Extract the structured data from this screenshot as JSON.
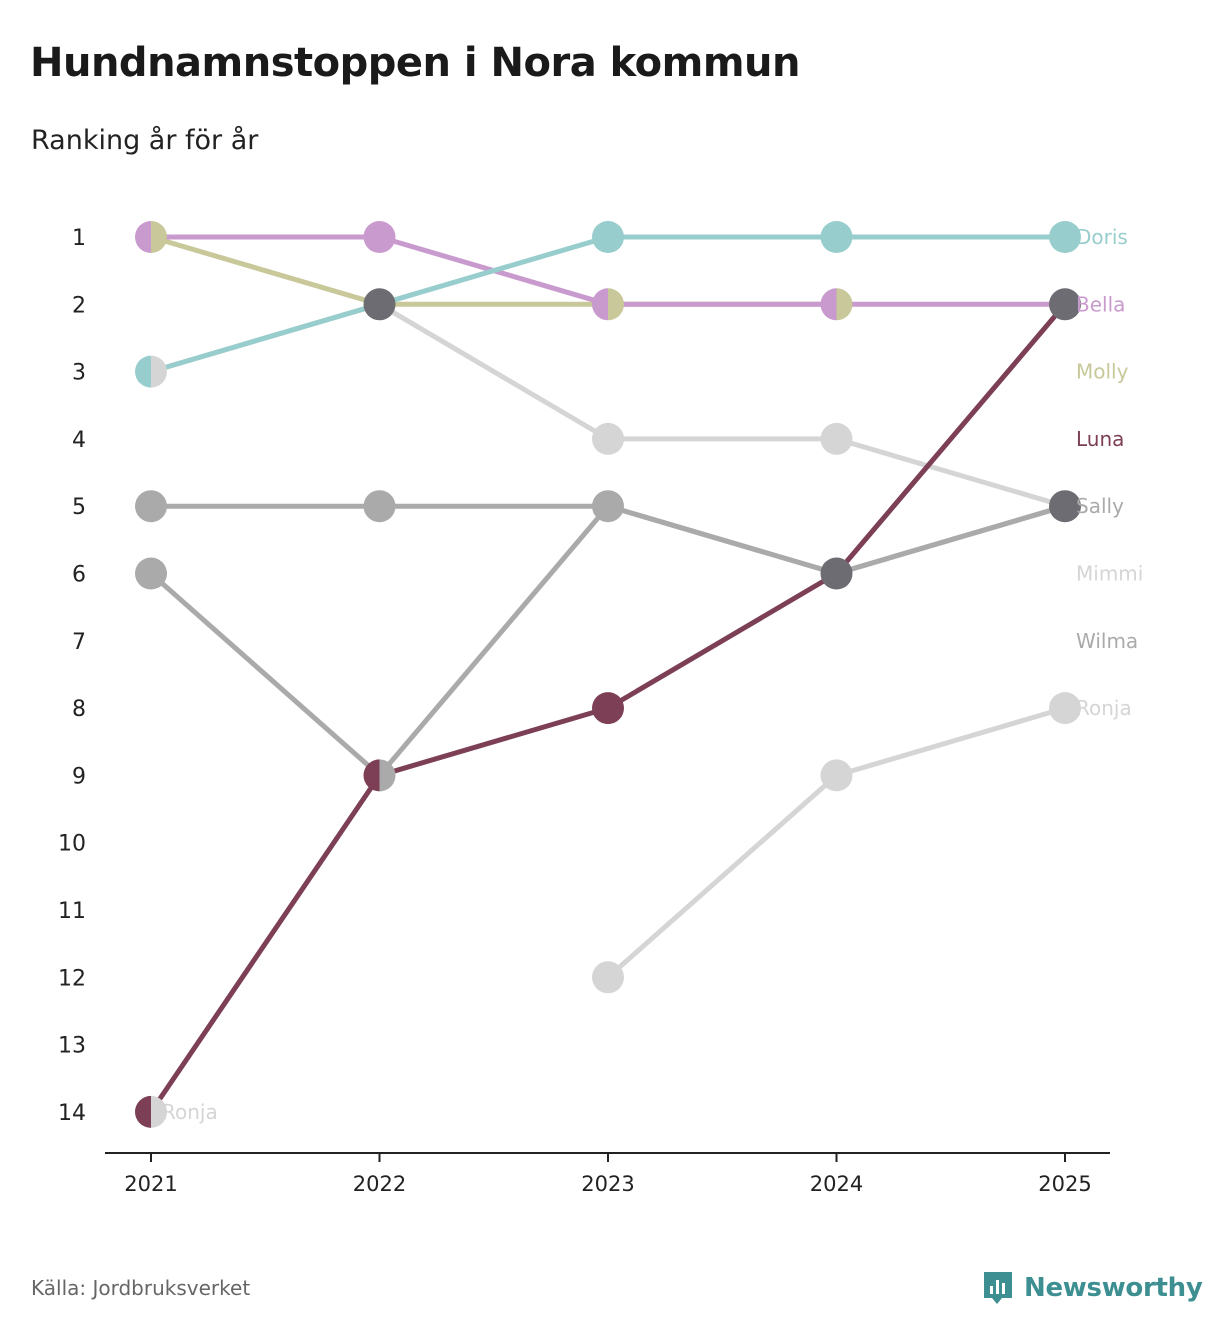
{
  "title": "Hundnamnstoppen i Nora kommun",
  "subtitle": "Ranking år för år",
  "source": "Källa: Jordbruksverket",
  "brand": "Newsworthy",
  "colors": {
    "brand": "#3d8f92",
    "axis": "#222222"
  },
  "chart_data": {
    "type": "line",
    "subtype": "bump",
    "x": [
      "2021",
      "2022",
      "2023",
      "2024",
      "2025"
    ],
    "y_ticks": [
      1,
      2,
      3,
      4,
      5,
      6,
      7,
      8,
      9,
      10,
      11,
      12,
      13,
      14
    ],
    "ylim": [
      14,
      1
    ],
    "y_reversed": true,
    "grid": false,
    "series": [
      {
        "name": "Mimmi",
        "color": "#d5d5d5",
        "values": [
          3,
          2,
          4,
          4,
          5
        ]
      },
      {
        "name": "Ronja",
        "color": "#d5d5d5",
        "values": [
          14,
          null,
          12,
          9,
          8
        ]
      },
      {
        "name": "Sally",
        "color": "#aaaaaa",
        "values": [
          5,
          5,
          5,
          6,
          5
        ]
      },
      {
        "name": "Wilma",
        "color": "#aaaaaa",
        "values": [
          6,
          9,
          5,
          6,
          5
        ]
      },
      {
        "name": "Molly",
        "color": "#c8c89a",
        "values": [
          1,
          2,
          2,
          2,
          null
        ]
      },
      {
        "name": "Bella",
        "color": "#c99acd",
        "values": [
          1,
          1,
          2,
          2,
          2
        ]
      },
      {
        "name": "Doris",
        "color": "#98cdcd",
        "values": [
          3,
          2,
          1,
          1,
          1
        ]
      },
      {
        "name": "Luna",
        "color": "#7d3f55",
        "values": [
          14,
          9,
          8,
          6,
          2
        ]
      }
    ],
    "markers": [
      {
        "x": "2021",
        "rank": 1,
        "left": "#c99acd",
        "right": "#c8c89a"
      },
      {
        "x": "2021",
        "rank": 3,
        "left": "#98cdcd",
        "right": "#d5d5d5"
      },
      {
        "x": "2021",
        "rank": 5,
        "left": "#aaaaaa",
        "right": "#aaaaaa"
      },
      {
        "x": "2021",
        "rank": 6,
        "left": "#aaaaaa",
        "right": "#aaaaaa"
      },
      {
        "x": "2021",
        "rank": 14,
        "left": "#7d3f55",
        "right": "#d5d5d5"
      },
      {
        "x": "2022",
        "rank": 1,
        "left": "#c99acd",
        "right": "#c99acd"
      },
      {
        "x": "2022",
        "rank": 2,
        "left": "#6c6c72",
        "right": "#6c6c72"
      },
      {
        "x": "2022",
        "rank": 5,
        "left": "#aaaaaa",
        "right": "#aaaaaa"
      },
      {
        "x": "2022",
        "rank": 9,
        "left": "#7d3f55",
        "right": "#aaaaaa"
      },
      {
        "x": "2023",
        "rank": 1,
        "left": "#98cdcd",
        "right": "#98cdcd"
      },
      {
        "x": "2023",
        "rank": 2,
        "left": "#c99acd",
        "right": "#c8c89a"
      },
      {
        "x": "2023",
        "rank": 4,
        "left": "#d5d5d5",
        "right": "#d5d5d5"
      },
      {
        "x": "2023",
        "rank": 5,
        "left": "#aaaaaa",
        "right": "#aaaaaa"
      },
      {
        "x": "2023",
        "rank": 8,
        "left": "#7d3f55",
        "right": "#7d3f55"
      },
      {
        "x": "2023",
        "rank": 12,
        "left": "#d5d5d5",
        "right": "#d5d5d5"
      },
      {
        "x": "2024",
        "rank": 1,
        "left": "#98cdcd",
        "right": "#98cdcd"
      },
      {
        "x": "2024",
        "rank": 2,
        "left": "#c99acd",
        "right": "#c8c89a"
      },
      {
        "x": "2024",
        "rank": 4,
        "left": "#d5d5d5",
        "right": "#d5d5d5"
      },
      {
        "x": "2024",
        "rank": 6,
        "left": "#6c6c72",
        "right": "#6c6c72"
      },
      {
        "x": "2024",
        "rank": 9,
        "left": "#d5d5d5",
        "right": "#d5d5d5"
      },
      {
        "x": "2025",
        "rank": 1,
        "left": "#98cdcd",
        "right": "#98cdcd"
      },
      {
        "x": "2025",
        "rank": 2,
        "left": "#6c6c72",
        "right": "#6c6c72"
      },
      {
        "x": "2025",
        "rank": 5,
        "left": "#6c6c72",
        "right": "#6c6c72"
      },
      {
        "x": "2025",
        "rank": 8,
        "left": "#d5d5d5",
        "right": "#d5d5d5"
      }
    ],
    "end_labels": [
      {
        "text": "Doris",
        "rank": 1,
        "color": "#98cdcd"
      },
      {
        "text": "Bella",
        "rank": 2,
        "color": "#c99acd"
      },
      {
        "text": "Molly",
        "rank": 3,
        "color": "#c8c89a"
      },
      {
        "text": "Luna",
        "rank": 4,
        "color": "#7d3f55"
      },
      {
        "text": "Sally",
        "rank": 5,
        "color": "#aaaaaa"
      },
      {
        "text": "Mimmi",
        "rank": 6,
        "color": "#d5d5d5"
      },
      {
        "text": "Wilma",
        "rank": 7,
        "color": "#aaaaaa"
      },
      {
        "text": "Ronja",
        "rank": 8,
        "color": "#d5d5d5"
      }
    ],
    "start_labels": [
      {
        "text": "Ronja",
        "x": "2021",
        "rank": 14,
        "color": "#d5d5d5"
      }
    ]
  }
}
